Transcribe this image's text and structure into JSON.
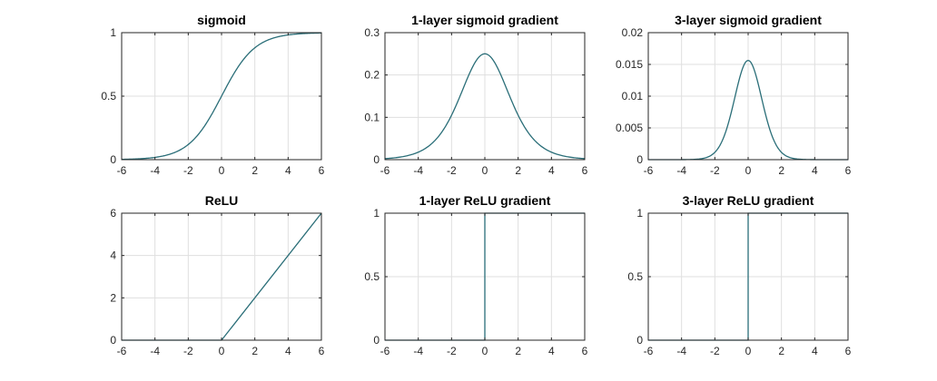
{
  "colors": {
    "line": "#2a6e78",
    "grid": "#dfdfdf",
    "axis": "#262626",
    "background": "#ffffff"
  },
  "chart_data": [
    {
      "type": "line",
      "title": "sigmoid",
      "function": "sigmoid",
      "xlim": [
        -6,
        6
      ],
      "ylim": [
        0,
        1
      ],
      "xticks": [
        -6,
        -4,
        -2,
        0,
        2,
        4,
        6
      ],
      "yticks": [
        0,
        0.5,
        1
      ],
      "ytick_labels": [
        "0",
        "0.5",
        "1"
      ],
      "grid": true,
      "series": [
        {
          "x": [
            -6,
            -4,
            -2,
            0,
            2,
            4,
            6
          ],
          "y": [
            0.0025,
            0.018,
            0.119,
            0.5,
            0.881,
            0.982,
            0.9975
          ]
        }
      ]
    },
    {
      "type": "line",
      "title": "1-layer sigmoid gradient",
      "function": "sigmoid_gradient",
      "xlim": [
        -6,
        6
      ],
      "ylim": [
        0,
        0.3
      ],
      "xticks": [
        -6,
        -4,
        -2,
        0,
        2,
        4,
        6
      ],
      "yticks": [
        0,
        0.1,
        0.2,
        0.3
      ],
      "ytick_labels": [
        "0",
        "0.1",
        "0.2",
        "0.3"
      ],
      "grid": true,
      "series": [
        {
          "x": [
            -6,
            -4,
            -2,
            0,
            2,
            4,
            6
          ],
          "y": [
            0.0025,
            0.0177,
            0.105,
            0.25,
            0.105,
            0.0177,
            0.0025
          ]
        }
      ]
    },
    {
      "type": "line",
      "title": "3-layer sigmoid gradient",
      "function": "sigmoid_gradient_cubed",
      "xlim": [
        -6,
        6
      ],
      "ylim": [
        0,
        0.02
      ],
      "xticks": [
        -6,
        -4,
        -2,
        0,
        2,
        4,
        6
      ],
      "yticks": [
        0,
        0.005,
        0.01,
        0.015,
        0.02
      ],
      "ytick_labels": [
        "0",
        "0.005",
        "0.01",
        "0.015",
        "0.02"
      ],
      "grid": true,
      "series": [
        {
          "x": [
            -6,
            -4,
            -2,
            0,
            2,
            4,
            6
          ],
          "y": [
            0,
            0,
            0.00116,
            0.0156,
            0.00116,
            0,
            0
          ]
        }
      ]
    },
    {
      "type": "line",
      "title": "ReLU",
      "function": "relu",
      "xlim": [
        -6,
        6
      ],
      "ylim": [
        0,
        6
      ],
      "xticks": [
        -6,
        -4,
        -2,
        0,
        2,
        4,
        6
      ],
      "yticks": [
        0,
        2,
        4,
        6
      ],
      "ytick_labels": [
        "0",
        "2",
        "4",
        "6"
      ],
      "grid": true,
      "series": [
        {
          "x": [
            -6,
            0,
            6
          ],
          "y": [
            0,
            0,
            6
          ]
        }
      ]
    },
    {
      "type": "line",
      "title": "1-layer ReLU gradient",
      "function": "step",
      "xlim": [
        -6,
        6
      ],
      "ylim": [
        0,
        1
      ],
      "xticks": [
        -6,
        -4,
        -2,
        0,
        2,
        4,
        6
      ],
      "yticks": [
        0,
        0.5,
        1
      ],
      "ytick_labels": [
        "0",
        "0.5",
        "1"
      ],
      "grid": true,
      "series": [
        {
          "x": [
            -6,
            0,
            0,
            6
          ],
          "y": [
            0,
            0,
            1,
            1
          ]
        }
      ]
    },
    {
      "type": "line",
      "title": "3-layer ReLU gradient",
      "function": "step",
      "xlim": [
        -6,
        6
      ],
      "ylim": [
        0,
        1
      ],
      "xticks": [
        -6,
        -4,
        -2,
        0,
        2,
        4,
        6
      ],
      "yticks": [
        0,
        0.5,
        1
      ],
      "ytick_labels": [
        "0",
        "0.5",
        "1"
      ],
      "grid": true,
      "series": [
        {
          "x": [
            -6,
            0,
            0,
            6
          ],
          "y": [
            0,
            0,
            1,
            1
          ]
        }
      ]
    }
  ]
}
